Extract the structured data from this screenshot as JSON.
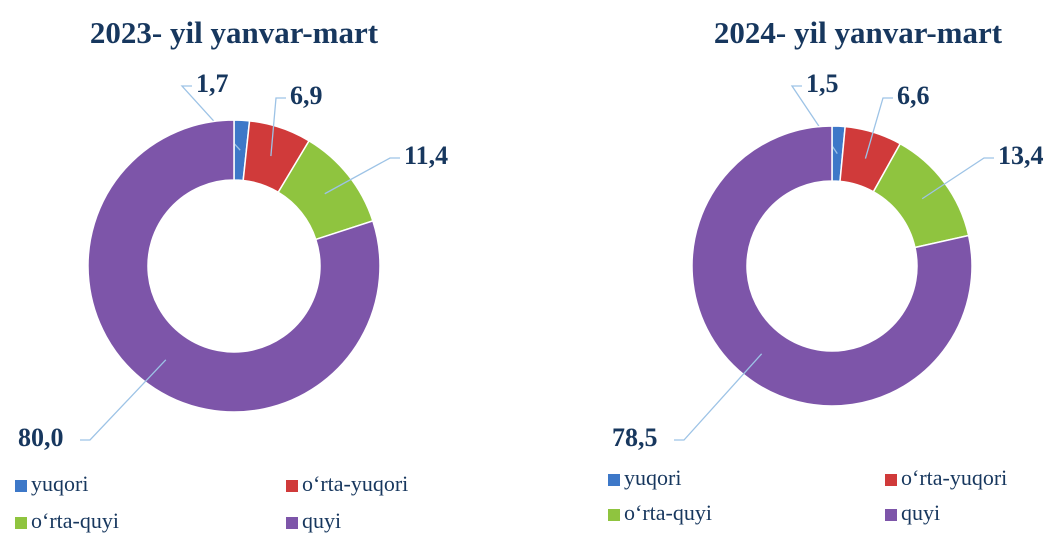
{
  "chart_data": [
    {
      "type": "donut",
      "title": "2023- yil yanvar-mart",
      "categories": [
        "yuqori",
        "o‘rta-yuqori",
        "o‘rta-quyi",
        "quyi"
      ],
      "values": [
        1.7,
        6.9,
        11.4,
        80.0
      ],
      "value_labels": [
        "1,7",
        "6,9",
        "11,4",
        "80,0"
      ],
      "colors": [
        "#3d78c8",
        "#d03a3a",
        "#8fc43f",
        "#7d55a9"
      ]
    },
    {
      "type": "donut",
      "title": "2024- yil yanvar-mart",
      "categories": [
        "yuqori",
        "o‘rta-yuqori",
        "o‘rta-quyi",
        "quyi"
      ],
      "values": [
        1.5,
        6.6,
        13.4,
        78.5
      ],
      "value_labels": [
        "1,5",
        "6,6",
        "13,4",
        "78,5"
      ],
      "colors": [
        "#3d78c8",
        "#d03a3a",
        "#8fc43f",
        "#7d55a9"
      ]
    }
  ]
}
